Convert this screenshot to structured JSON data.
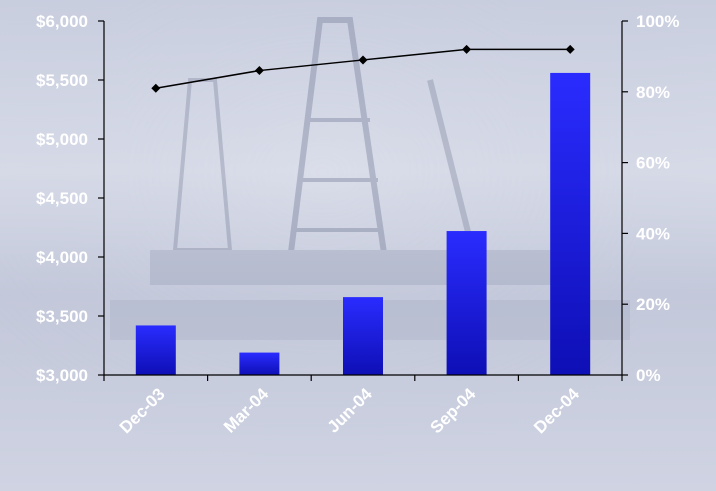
{
  "chart_data": {
    "type": "bar",
    "title": "",
    "xlabel": "",
    "ylabel": "",
    "categories": [
      "Dec-03",
      "Mar-04",
      "Jun-04",
      "Sep-04",
      "Dec-04"
    ],
    "series": [
      {
        "type": "bar",
        "axis": "left",
        "values": [
          3420,
          3190,
          3660,
          4220,
          5560
        ]
      },
      {
        "type": "line",
        "axis": "right",
        "values": [
          81,
          86,
          89,
          92,
          92
        ]
      }
    ],
    "ylim": [
      3000,
      6000
    ],
    "y2lim": [
      0,
      100
    ],
    "yticks": [
      "$3,000",
      "$3,500",
      "$4,000",
      "$4,500",
      "$5,000",
      "$5,500",
      "$6,000"
    ],
    "y2ticks": [
      "0%",
      "20%",
      "40%",
      "60%",
      "80%",
      "100%"
    ],
    "grid": false,
    "legend": "none",
    "colors": {
      "bar_top": "#2a2cff",
      "bar_bottom": "#0e0fb5",
      "line": "#000000",
      "axis": "#000000",
      "tick_text": "#ffffff"
    }
  }
}
